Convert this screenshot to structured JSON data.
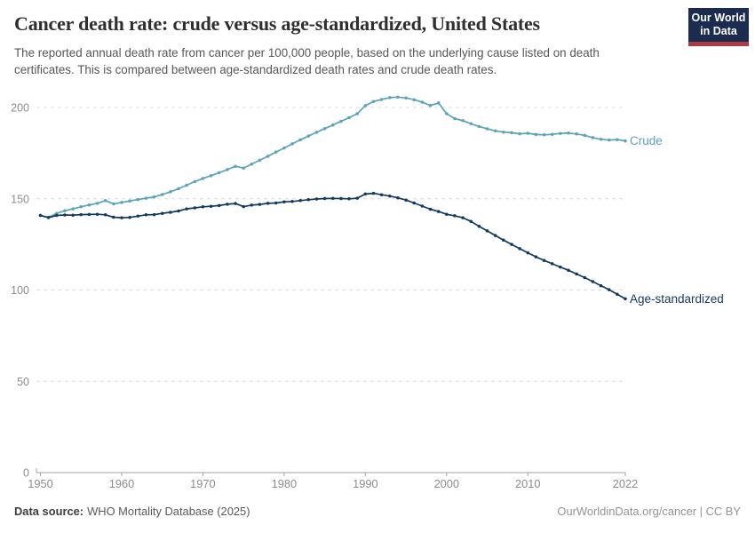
{
  "header": {
    "title": "Cancer death rate: crude versus age-standardized, United States",
    "subtitle_line1": "The reported annual death rate from cancer per 100,000 people, based on the underlying cause listed on death",
    "subtitle_line2": "certificates. This is compared between age-standardized death rates and crude death rates.",
    "logo": {
      "line1": "Our World",
      "line2": "in Data",
      "bg_color": "#1b2c50",
      "bar_color": "#ae3a44"
    }
  },
  "footer": {
    "source_label": "Data source:",
    "source_value": "WHO Mortality Database (2025)",
    "rights": "OurWorldinData.org/cancer | CC BY"
  },
  "chart_data": {
    "type": "line",
    "title": "Cancer death rate: crude versus age-standardized, United States",
    "xlabel": "",
    "ylabel": "",
    "grid": "horizontal-dashed",
    "legend_position": "end-of-line-labels",
    "ylim": [
      0,
      210
    ],
    "yticks": [
      0,
      50,
      100,
      150,
      200
    ],
    "xticks": [
      1950,
      1960,
      1970,
      1980,
      1990,
      2000,
      2010,
      2022
    ],
    "axis_color": "#a3a3a3",
    "grid_color": "#dcdcdc",
    "tick_label_color": "#8c8c8c",
    "years": [
      1950,
      1951,
      1952,
      1953,
      1954,
      1955,
      1956,
      1957,
      1958,
      1959,
      1960,
      1961,
      1962,
      1963,
      1964,
      1965,
      1966,
      1967,
      1968,
      1969,
      1970,
      1971,
      1972,
      1973,
      1974,
      1975,
      1976,
      1977,
      1978,
      1979,
      1980,
      1981,
      1982,
      1983,
      1984,
      1985,
      1986,
      1987,
      1988,
      1989,
      1990,
      1991,
      1992,
      1993,
      1994,
      1995,
      1996,
      1997,
      1998,
      1999,
      2000,
      2001,
      2002,
      2003,
      2004,
      2005,
      2006,
      2007,
      2008,
      2009,
      2010,
      2011,
      2012,
      2013,
      2014,
      2015,
      2016,
      2017,
      2018,
      2019,
      2020,
      2021,
      2022
    ],
    "series": [
      {
        "name": "Crude",
        "color": "#5ba3b6",
        "values": [
          140.9,
          139.8,
          142.0,
          143.4,
          144.5,
          145.6,
          146.6,
          147.5,
          149.0,
          147.2,
          148.0,
          148.8,
          149.6,
          150.3,
          151.0,
          152.3,
          153.8,
          155.5,
          157.4,
          159.4,
          161.1,
          162.7,
          164.3,
          166.0,
          167.8,
          166.8,
          169.0,
          171.1,
          173.3,
          175.6,
          177.8,
          180.1,
          182.3,
          184.4,
          186.4,
          188.4,
          190.4,
          192.4,
          194.4,
          196.6,
          201.0,
          203.3,
          204.4,
          205.4,
          205.7,
          205.2,
          204.3,
          202.9,
          201.1,
          202.5,
          196.6,
          193.9,
          192.8,
          191.1,
          189.6,
          188.3,
          187.2,
          186.5,
          186.2,
          185.6,
          185.9,
          185.2,
          185.0,
          185.3,
          185.8,
          186.0,
          185.5,
          184.7,
          183.5,
          182.6,
          182.2,
          182.4,
          181.7
        ]
      },
      {
        "name": "Age-standardized",
        "color": "#123a5c",
        "values": [
          140.9,
          139.7,
          140.9,
          141.1,
          141.0,
          141.3,
          141.4,
          141.5,
          141.2,
          139.9,
          139.6,
          139.8,
          140.5,
          141.2,
          141.3,
          142.0,
          142.6,
          143.3,
          144.5,
          145.0,
          145.6,
          145.9,
          146.3,
          147.0,
          147.4,
          145.7,
          146.5,
          146.9,
          147.5,
          147.7,
          148.3,
          148.5,
          149.0,
          149.5,
          149.9,
          150.1,
          150.2,
          150.1,
          150.0,
          150.3,
          152.6,
          153.0,
          152.2,
          151.5,
          150.5,
          149.3,
          147.7,
          146.0,
          144.3,
          143.0,
          141.5,
          140.7,
          139.6,
          137.6,
          134.9,
          132.4,
          129.9,
          127.4,
          125.0,
          122.7,
          120.4,
          118.2,
          116.2,
          114.4,
          112.6,
          110.8,
          108.8,
          106.8,
          104.6,
          102.4,
          100.2,
          97.7,
          95.2
        ]
      }
    ]
  }
}
